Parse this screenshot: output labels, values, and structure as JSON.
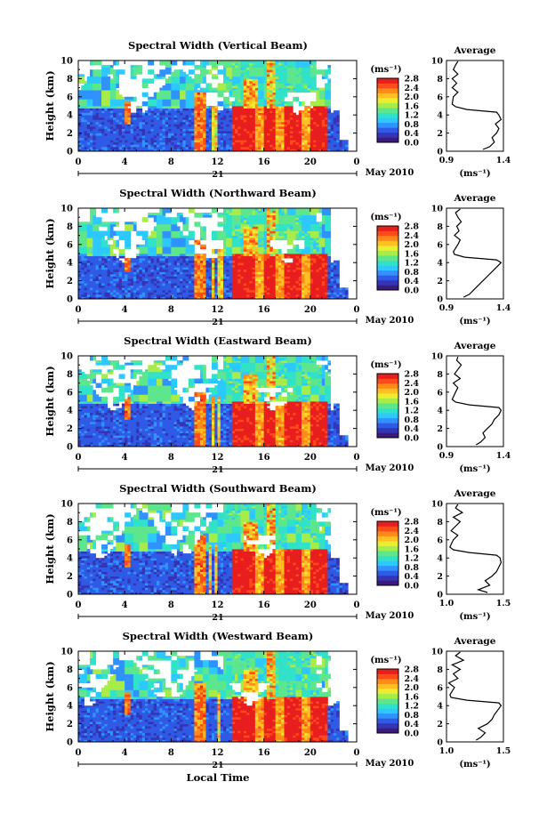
{
  "figure": {
    "xlabel": "Local Time",
    "day_label": "21",
    "date_label": "May 2010",
    "unit_label": "(ms⁻¹)",
    "avg_title": "Average",
    "ylabel": "Height (km)"
  },
  "chart_data": [
    {
      "type": "heatmap",
      "title": "Spectral Width (Vertical Beam)",
      "xlabel": "Local Time",
      "ylabel": "Height (km)",
      "x_ticks": [
        "0",
        "4",
        "8",
        "12",
        "16",
        "20",
        "0"
      ],
      "xlim": [
        0,
        24
      ],
      "y_ticks": [
        "0",
        "2",
        "4",
        "6",
        "8",
        "10"
      ],
      "ylim": [
        0,
        10
      ],
      "colorbar": {
        "label": "(ms⁻¹)",
        "ticks": [
          "0.0",
          "0.4",
          "0.8",
          "1.2",
          "1.6",
          "2.0",
          "2.4",
          "2.8"
        ],
        "range": [
          0,
          2.8
        ]
      },
      "average_profile": {
        "title": "Average",
        "xlabel": "(ms⁻¹)",
        "x_ticks": [
          "0.9",
          "1.4"
        ],
        "xlim": [
          0.9,
          1.4
        ],
        "ylim": [
          0,
          10
        ],
        "height": [
          0.2,
          0.5,
          1.0,
          1.5,
          2.0,
          2.5,
          3.0,
          3.5,
          4.0,
          4.3,
          4.6,
          4.9,
          5.2,
          6.0,
          6.5,
          7.0,
          7.5,
          8.0,
          8.5,
          9.0,
          9.5,
          9.9
        ],
        "value": [
          1.22,
          1.28,
          1.32,
          1.3,
          1.34,
          1.36,
          1.33,
          1.38,
          1.36,
          1.34,
          1.08,
          0.98,
          0.95,
          0.96,
          1.0,
          0.95,
          0.99,
          0.95,
          1.0,
          0.96,
          0.98,
          1.0
        ]
      }
    },
    {
      "type": "heatmap",
      "title": "Spectral Width (Northward Beam)",
      "xlabel": "Local Time",
      "ylabel": "Height (km)",
      "x_ticks": [
        "0",
        "4",
        "8",
        "12",
        "16",
        "20",
        "0"
      ],
      "xlim": [
        0,
        24
      ],
      "y_ticks": [
        "0",
        "2",
        "4",
        "6",
        "8",
        "10"
      ],
      "ylim": [
        0,
        10
      ],
      "colorbar": {
        "label": "(ms⁻¹)",
        "ticks": [
          "0.0",
          "0.4",
          "0.8",
          "1.2",
          "1.6",
          "2.0",
          "2.4",
          "2.8"
        ],
        "range": [
          0,
          2.8
        ]
      },
      "average_profile": {
        "title": "Average",
        "xlabel": "(ms⁻¹)",
        "x_ticks": [
          "0.9",
          "1.4"
        ],
        "xlim": [
          0.9,
          1.4
        ],
        "ylim": [
          0,
          10
        ],
        "height": [
          0.2,
          0.5,
          1.0,
          1.5,
          2.0,
          2.5,
          3.0,
          3.5,
          4.0,
          4.3,
          4.6,
          4.9,
          5.2,
          6.0,
          6.5,
          7.0,
          7.5,
          8.0,
          8.5,
          9.0,
          9.5,
          9.9
        ],
        "value": [
          1.05,
          1.1,
          1.14,
          1.18,
          1.22,
          1.26,
          1.3,
          1.34,
          1.38,
          1.34,
          1.06,
          0.97,
          0.96,
          1.0,
          1.02,
          0.97,
          1.01,
          0.99,
          1.03,
          1.0,
          0.98,
          1.02
        ]
      }
    },
    {
      "type": "heatmap",
      "title": "Spectral Width (Eastward Beam)",
      "xlabel": "Local Time",
      "ylabel": "Height (km)",
      "x_ticks": [
        "0",
        "4",
        "8",
        "12",
        "16",
        "20",
        "0"
      ],
      "xlim": [
        0,
        24
      ],
      "y_ticks": [
        "0",
        "2",
        "4",
        "6",
        "8",
        "10"
      ],
      "ylim": [
        0,
        10
      ],
      "colorbar": {
        "label": "(ms⁻¹)",
        "ticks": [
          "0.0",
          "0.4",
          "0.8",
          "1.2",
          "1.6",
          "2.0",
          "2.4",
          "2.8"
        ],
        "range": [
          0,
          2.8
        ]
      },
      "average_profile": {
        "title": "Average",
        "xlabel": "(ms⁻¹)",
        "x_ticks": [
          "0.9",
          "1.4"
        ],
        "xlim": [
          0.9,
          1.4
        ],
        "ylim": [
          0,
          10
        ],
        "height": [
          0.2,
          0.5,
          1.0,
          1.5,
          2.0,
          2.5,
          3.0,
          3.5,
          4.0,
          4.3,
          4.6,
          4.9,
          5.2,
          6.0,
          6.5,
          7.0,
          7.5,
          8.0,
          8.5,
          9.0,
          9.5,
          9.9
        ],
        "value": [
          1.16,
          1.2,
          1.24,
          1.22,
          1.26,
          1.3,
          1.32,
          1.36,
          1.38,
          1.36,
          1.1,
          0.98,
          0.95,
          0.98,
          1.0,
          0.96,
          1.02,
          0.97,
          1.0,
          1.03,
          0.99,
          1.0
        ]
      }
    },
    {
      "type": "heatmap",
      "title": "Spectral Width (Southward Beam)",
      "xlabel": "Local Time",
      "ylabel": "Height (km)",
      "x_ticks": [
        "0",
        "4",
        "8",
        "12",
        "16",
        "20",
        "0"
      ],
      "xlim": [
        0,
        24
      ],
      "y_ticks": [
        "0",
        "2",
        "4",
        "6",
        "8",
        "10"
      ],
      "ylim": [
        0,
        10
      ],
      "colorbar": {
        "label": "(ms⁻¹)",
        "ticks": [
          "0.0",
          "0.4",
          "0.8",
          "1.2",
          "1.6",
          "2.0",
          "2.4",
          "2.8"
        ],
        "range": [
          0,
          2.8
        ]
      },
      "average_profile": {
        "title": "Average",
        "xlabel": "(ms⁻¹)",
        "x_ticks": [
          "1.0",
          "1.5"
        ],
        "xlim": [
          1.0,
          1.5
        ],
        "ylim": [
          0,
          10
        ],
        "height": [
          0.2,
          0.5,
          1.0,
          1.5,
          2.0,
          2.5,
          3.0,
          3.5,
          4.0,
          4.3,
          4.6,
          4.9,
          5.2,
          6.0,
          6.5,
          7.0,
          7.5,
          8.0,
          8.5,
          9.0,
          9.5,
          9.9
        ],
        "value": [
          1.36,
          1.28,
          1.38,
          1.34,
          1.4,
          1.44,
          1.46,
          1.48,
          1.47,
          1.44,
          1.2,
          1.06,
          1.03,
          1.06,
          1.1,
          1.04,
          1.08,
          1.12,
          1.06,
          1.14,
          1.08,
          1.1
        ]
      }
    },
    {
      "type": "heatmap",
      "title": "Spectral Width (Westward Beam)",
      "xlabel": "Local Time",
      "ylabel": "Height (km)",
      "x_ticks": [
        "0",
        "4",
        "8",
        "12",
        "16",
        "20",
        "0"
      ],
      "xlim": [
        0,
        24
      ],
      "y_ticks": [
        "0",
        "2",
        "4",
        "6",
        "8",
        "10"
      ],
      "ylim": [
        0,
        10
      ],
      "colorbar": {
        "label": "(ms⁻¹)",
        "ticks": [
          "0.0",
          "0.4",
          "0.8",
          "1.2",
          "1.6",
          "2.0",
          "2.4",
          "2.8"
        ],
        "range": [
          0,
          2.8
        ]
      },
      "average_profile": {
        "title": "Average",
        "xlabel": "(ms⁻¹)",
        "x_ticks": [
          "1.0",
          "1.5"
        ],
        "xlim": [
          1.0,
          1.5
        ],
        "ylim": [
          0,
          10
        ],
        "height": [
          0.2,
          0.5,
          1.0,
          1.5,
          2.0,
          2.5,
          3.0,
          3.5,
          4.0,
          4.3,
          4.6,
          4.9,
          5.2,
          6.0,
          6.5,
          7.0,
          7.5,
          8.0,
          8.5,
          9.0,
          9.5,
          9.9
        ],
        "value": [
          1.26,
          1.3,
          1.34,
          1.28,
          1.36,
          1.4,
          1.42,
          1.45,
          1.48,
          1.46,
          1.18,
          1.04,
          1.03,
          1.07,
          1.02,
          1.1,
          1.06,
          1.12,
          1.05,
          1.15,
          1.08,
          1.12
        ]
      }
    }
  ],
  "colors": {
    "scale": [
      "#3c1a78",
      "#3434b4",
      "#2f5ae6",
      "#2f92ff",
      "#2cc8ff",
      "#31e2c8",
      "#5ee68c",
      "#a8ec4a",
      "#ecec30",
      "#ffc020",
      "#ff8a18",
      "#ff4a1a",
      "#e81e1e"
    ],
    "missing": "#ffffff"
  }
}
